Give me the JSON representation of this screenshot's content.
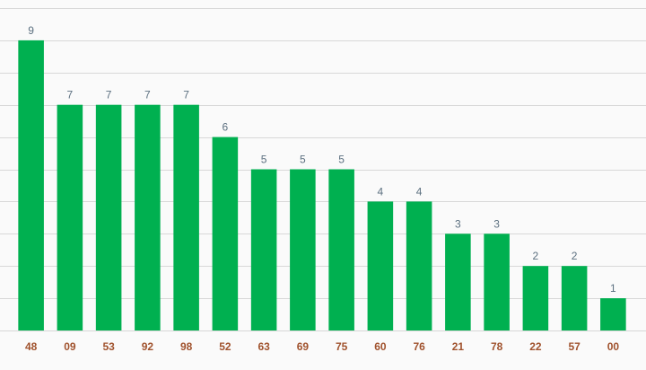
{
  "chart_data": {
    "type": "bar",
    "title": "",
    "xlabel": "",
    "ylabel": "",
    "categories": [
      "48",
      "09",
      "53",
      "92",
      "98",
      "52",
      "63",
      "69",
      "75",
      "60",
      "76",
      "21",
      "78",
      "22",
      "57",
      "00"
    ],
    "values": [
      9,
      7,
      7,
      7,
      7,
      6,
      5,
      5,
      5,
      4,
      4,
      3,
      3,
      2,
      2,
      1
    ],
    "ylim": [
      0,
      10
    ],
    "grid": true,
    "legend": "none",
    "show_data_labels": true,
    "bar_color": "#00b050",
    "tick_label_color": "#a0522d",
    "value_label_color": "#5c7080"
  }
}
